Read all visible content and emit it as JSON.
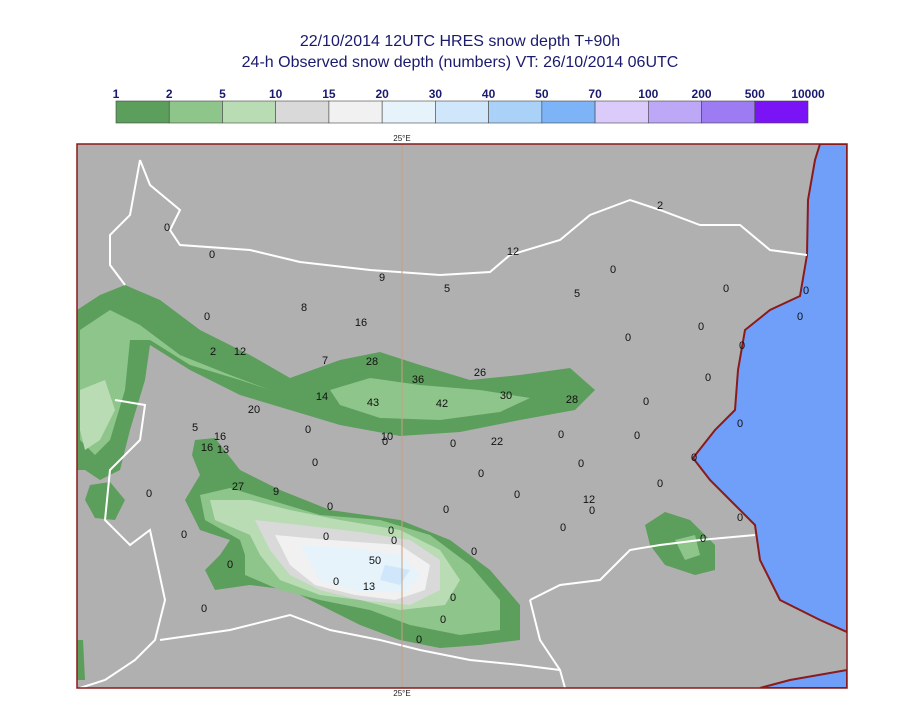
{
  "header": {
    "title": "22/10/2014 12UTC HRES snow depth T+90h",
    "subtitle": "24-h Observed snow depth (numbers) VT: 26/10/2014 06UTC"
  },
  "legend": {
    "labels": [
      "1",
      "2",
      "5",
      "10",
      "15",
      "20",
      "30",
      "40",
      "50",
      "70",
      "100",
      "200",
      "500",
      "10000"
    ],
    "colors": [
      "#5c9e5c",
      "#8ec58a",
      "#b9dcb5",
      "#d9d9d9",
      "#f1f1f1",
      "#e6f3fb",
      "#cfe6fb",
      "#aad2f9",
      "#7cb4f7",
      "#dacbfa",
      "#bca8f6",
      "#9c7bf3",
      "#7a14f6"
    ]
  },
  "map": {
    "meridian_top": "25°E",
    "meridian_bottom": "25°E",
    "observations": [
      "0",
      "0",
      "2",
      "12",
      "9",
      "5",
      "0",
      "5",
      "0",
      "0",
      "0",
      "0",
      "8",
      "16",
      "0",
      "0",
      "0",
      "2",
      "12",
      "7",
      "28",
      "26",
      "36",
      "0",
      "14",
      "43",
      "42",
      "30",
      "28",
      "0",
      "20",
      "5",
      "0",
      "10",
      "0",
      "0",
      "22",
      "0",
      "0",
      "0",
      "16",
      "16",
      "13",
      "0",
      "0",
      "0",
      "0",
      "0",
      "27",
      "9",
      "0",
      "0",
      "12",
      "0",
      "0",
      "0",
      "0",
      "0",
      "0",
      "0",
      "0",
      "0",
      "0",
      "0",
      "50",
      "0",
      "0",
      "13",
      "0",
      "0",
      "0",
      "0"
    ]
  }
}
